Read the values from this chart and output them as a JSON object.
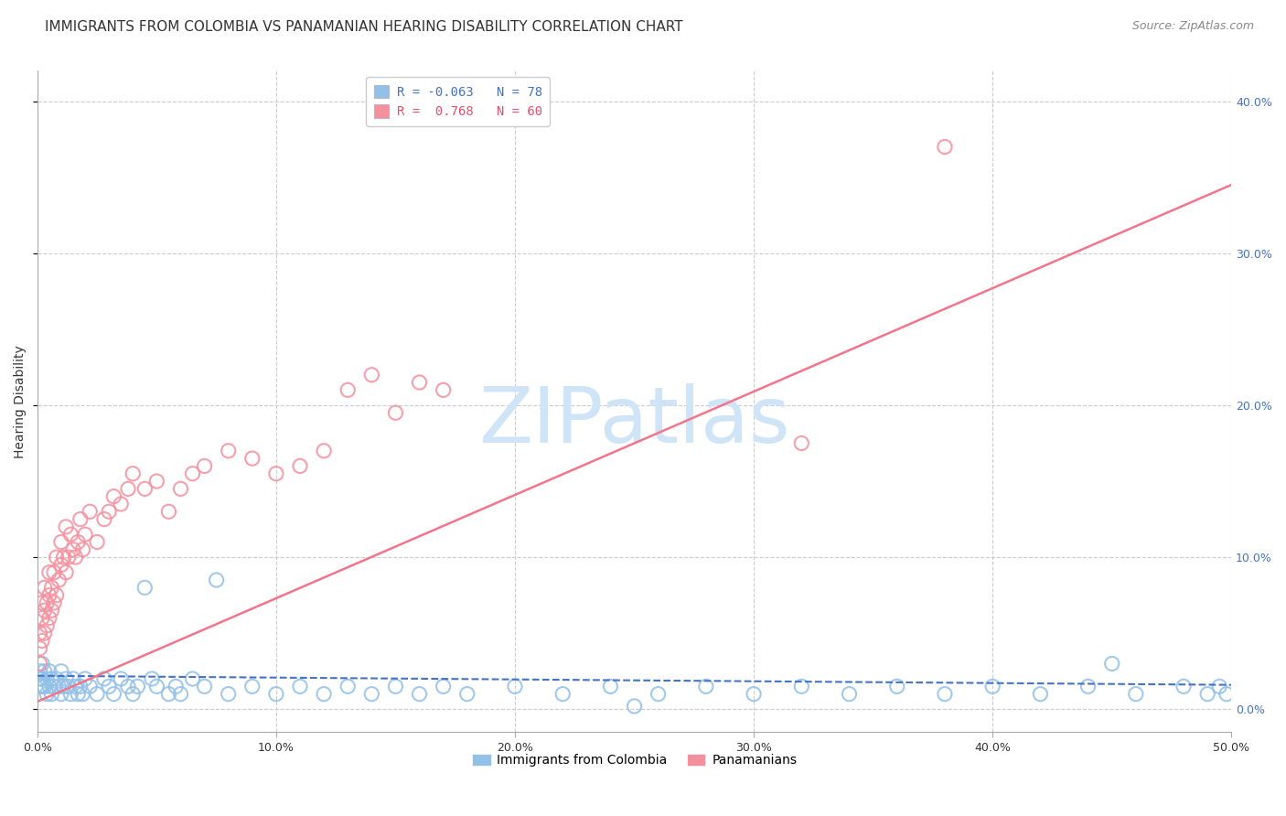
{
  "title": "IMMIGRANTS FROM COLOMBIA VS PANAMANIAN HEARING DISABILITY CORRELATION CHART",
  "source": "Source: ZipAtlas.com",
  "ylabel": "Hearing Disability",
  "xlim": [
    0.0,
    0.5
  ],
  "ylim": [
    -0.015,
    0.42
  ],
  "xticks": [
    0.0,
    0.1,
    0.2,
    0.3,
    0.4,
    0.5
  ],
  "xtick_labels": [
    "0.0%",
    "10.0%",
    "20.0%",
    "30.0%",
    "40.0%",
    "50.0%"
  ],
  "yticks": [
    0.0,
    0.1,
    0.2,
    0.3,
    0.4
  ],
  "ytick_labels_right": [
    "0.0%",
    "10.0%",
    "20.0%",
    "30.0%",
    "40.0%"
  ],
  "legend_R1": "R = -0.063",
  "legend_N1": "N = 78",
  "legend_R2": "R =  0.768",
  "legend_N2": "N = 60",
  "colombia_color": "#92c0e8",
  "colombia_edge": "#6aaad4",
  "panama_color": "#f4909e",
  "panama_edge": "#e87080",
  "colombia_trend_color": "#4472c4",
  "panama_trend_color": "#f4748c",
  "watermark": "ZIPatlas",
  "watermark_color": "#d0e4f7",
  "background_color": "#ffffff",
  "grid_color": "#cccccc",
  "colombia_scatter_x": [
    0.001,
    0.001,
    0.001,
    0.002,
    0.002,
    0.002,
    0.003,
    0.003,
    0.004,
    0.004,
    0.005,
    0.005,
    0.006,
    0.006,
    0.007,
    0.008,
    0.009,
    0.01,
    0.01,
    0.011,
    0.012,
    0.013,
    0.014,
    0.015,
    0.016,
    0.017,
    0.018,
    0.019,
    0.02,
    0.022,
    0.025,
    0.028,
    0.03,
    0.032,
    0.035,
    0.038,
    0.04,
    0.042,
    0.045,
    0.048,
    0.05,
    0.055,
    0.058,
    0.06,
    0.065,
    0.07,
    0.075,
    0.08,
    0.09,
    0.1,
    0.11,
    0.12,
    0.13,
    0.14,
    0.15,
    0.16,
    0.17,
    0.18,
    0.2,
    0.22,
    0.24,
    0.26,
    0.28,
    0.3,
    0.32,
    0.34,
    0.36,
    0.38,
    0.4,
    0.42,
    0.44,
    0.46,
    0.48,
    0.49,
    0.495,
    0.498,
    0.25,
    0.45
  ],
  "colombia_scatter_y": [
    0.025,
    0.02,
    0.015,
    0.03,
    0.02,
    0.015,
    0.025,
    0.015,
    0.02,
    0.01,
    0.025,
    0.015,
    0.02,
    0.01,
    0.015,
    0.02,
    0.015,
    0.025,
    0.01,
    0.015,
    0.02,
    0.015,
    0.01,
    0.02,
    0.015,
    0.01,
    0.015,
    0.01,
    0.02,
    0.015,
    0.01,
    0.02,
    0.015,
    0.01,
    0.02,
    0.015,
    0.01,
    0.015,
    0.08,
    0.02,
    0.015,
    0.01,
    0.015,
    0.01,
    0.02,
    0.015,
    0.085,
    0.01,
    0.015,
    0.01,
    0.015,
    0.01,
    0.015,
    0.01,
    0.015,
    0.01,
    0.015,
    0.01,
    0.015,
    0.01,
    0.015,
    0.01,
    0.015,
    0.01,
    0.015,
    0.01,
    0.015,
    0.01,
    0.015,
    0.01,
    0.015,
    0.01,
    0.015,
    0.01,
    0.015,
    0.01,
    0.002,
    0.03
  ],
  "colombia_trend_x": [
    0.0,
    0.5
  ],
  "colombia_trend_y": [
    0.022,
    0.016
  ],
  "panama_scatter_x": [
    0.001,
    0.001,
    0.001,
    0.002,
    0.002,
    0.002,
    0.003,
    0.003,
    0.003,
    0.004,
    0.004,
    0.005,
    0.005,
    0.005,
    0.006,
    0.006,
    0.007,
    0.007,
    0.008,
    0.008,
    0.009,
    0.01,
    0.01,
    0.011,
    0.012,
    0.012,
    0.013,
    0.014,
    0.015,
    0.016,
    0.017,
    0.018,
    0.019,
    0.02,
    0.022,
    0.025,
    0.028,
    0.03,
    0.032,
    0.035,
    0.038,
    0.04,
    0.045,
    0.05,
    0.055,
    0.06,
    0.065,
    0.07,
    0.08,
    0.09,
    0.1,
    0.11,
    0.12,
    0.13,
    0.14,
    0.15,
    0.16,
    0.17,
    0.32,
    0.38
  ],
  "panama_scatter_y": [
    0.03,
    0.04,
    0.05,
    0.045,
    0.06,
    0.07,
    0.05,
    0.065,
    0.08,
    0.055,
    0.07,
    0.06,
    0.075,
    0.09,
    0.065,
    0.08,
    0.07,
    0.09,
    0.075,
    0.1,
    0.085,
    0.095,
    0.11,
    0.1,
    0.09,
    0.12,
    0.1,
    0.115,
    0.105,
    0.1,
    0.11,
    0.125,
    0.105,
    0.115,
    0.13,
    0.11,
    0.125,
    0.13,
    0.14,
    0.135,
    0.145,
    0.155,
    0.145,
    0.15,
    0.13,
    0.145,
    0.155,
    0.16,
    0.17,
    0.165,
    0.155,
    0.16,
    0.17,
    0.21,
    0.22,
    0.195,
    0.215,
    0.21,
    0.175,
    0.37
  ],
  "panama_trend_x": [
    0.0,
    0.5
  ],
  "panama_trend_y": [
    0.005,
    0.345
  ]
}
